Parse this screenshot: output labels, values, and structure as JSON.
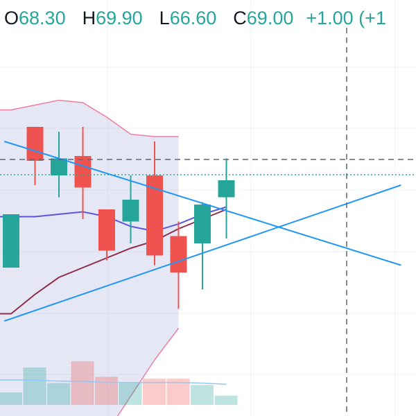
{
  "legend": {
    "open_label": "O",
    "open_value": "68.30",
    "high_label": "H",
    "high_value": "69.90",
    "low_label": "L",
    "low_value": "66.60",
    "close_label": "C",
    "close_value": "69.00",
    "change": "+1.00 (+1"
  },
  "colors": {
    "up": "#26a69a",
    "down": "#ef5350",
    "bollinger_band": "#e91e63",
    "bollinger_fill": "#b2b5dd",
    "ma_fast": "#5b55e0",
    "ma_slow": "#8e2e4a",
    "trend_lines": "#2196f3",
    "volume_ma": "#90caf9",
    "grid": "#eef0f3",
    "crosshair": "#5d6673",
    "last_price_line": "#26a69a"
  },
  "chart_data": {
    "type": "candlestick",
    "y_range": [
      60.0,
      72.0
    ],
    "grid": true,
    "last_price": 69.0,
    "candles": [
      {
        "open": 65.4,
        "high": 67.6,
        "low": 65.4,
        "close": 67.6
      },
      {
        "open": 71.2,
        "high": 71.2,
        "low": 68.8,
        "close": 69.8
      },
      {
        "open": 69.2,
        "high": 71.0,
        "low": 68.3,
        "close": 69.9
      },
      {
        "open": 70.0,
        "high": 71.2,
        "low": 67.4,
        "close": 68.7
      },
      {
        "open": 67.8,
        "high": 67.8,
        "low": 65.7,
        "close": 66.1
      },
      {
        "open": 67.3,
        "high": 69.2,
        "low": 66.4,
        "close": 68.2
      },
      {
        "open": 69.2,
        "high": 70.6,
        "low": 65.5,
        "close": 65.9
      },
      {
        "open": 66.7,
        "high": 67.3,
        "low": 63.7,
        "close": 65.2
      },
      {
        "open": 66.4,
        "high": 68.1,
        "low": 64.5,
        "close": 68.0
      },
      {
        "open": 68.3,
        "high": 69.9,
        "low": 66.6,
        "close": 69.0
      }
    ],
    "bollinger_upper": [
      71.9,
      72.1,
      72.3,
      72.2,
      71.6,
      70.9,
      70.8,
      70.8
    ],
    "bollinger_lower": [
      null,
      null,
      null,
      null,
      58.6,
      60.1,
      61.6,
      62.9
    ],
    "ma_fast": [
      67.5,
      67.5,
      67.6,
      67.7,
      67.5,
      67.1,
      66.9,
      67.2,
      67.6,
      67.9
    ],
    "ma_slow": [
      63.5,
      64.3,
      65.0,
      65.4,
      65.8,
      66.2,
      66.5,
      67.0,
      67.4,
      67.8
    ],
    "trend_lines": [
      {
        "x1": -0.28,
        "y1": 70.6,
        "x2": 16.3,
        "y2": 65.5
      },
      {
        "x1": -0.28,
        "y1": 63.2,
        "x2": 16.3,
        "y2": 68.8
      }
    ],
    "volume": [
      {
        "value": 2,
        "direction": "up"
      },
      {
        "value": 6,
        "direction": "up"
      },
      {
        "value": 3.5,
        "direction": "up"
      },
      {
        "value": 7,
        "direction": "down"
      },
      {
        "value": 4.5,
        "direction": "down"
      },
      {
        "value": 3.5,
        "direction": "up"
      },
      {
        "value": 4.2,
        "direction": "down"
      },
      {
        "value": 4.2,
        "direction": "down"
      },
      {
        "value": 3.2,
        "direction": "up"
      },
      {
        "value": 1.5,
        "direction": "up"
      }
    ],
    "volume_ma": [
      null,
      4.0,
      3.8,
      3.8,
      3.6,
      3.6,
      3.6,
      3.6,
      3.5,
      3.3
    ],
    "crosshair": {
      "bar": 14.5,
      "price": 69.0
    }
  }
}
